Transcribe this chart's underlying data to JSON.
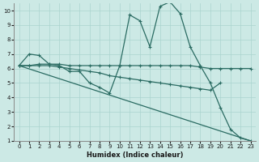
{
  "xlabel": "Humidex (Indice chaleur)",
  "xlim": [
    -0.5,
    23.5
  ],
  "ylim": [
    1,
    10.5
  ],
  "xticks": [
    0,
    1,
    2,
    3,
    4,
    5,
    6,
    7,
    8,
    9,
    10,
    11,
    12,
    13,
    14,
    15,
    16,
    17,
    18,
    19,
    20,
    21,
    22,
    23
  ],
  "yticks": [
    1,
    2,
    3,
    4,
    5,
    6,
    7,
    8,
    9,
    10
  ],
  "bg_color": "#cce9e5",
  "grid_color": "#aad4cf",
  "line_color": "#2a6b62",
  "lines": [
    {
      "x": [
        0,
        1,
        2,
        3,
        4,
        5,
        6,
        7,
        8,
        9,
        10,
        11,
        12,
        13,
        14,
        15,
        16,
        17,
        18,
        19,
        20,
        21,
        22,
        23
      ],
      "y": [
        6.2,
        7.0,
        6.9,
        6.3,
        6.2,
        5.8,
        5.8,
        5.0,
        4.7,
        4.3,
        6.2,
        9.7,
        9.3,
        7.5,
        10.3,
        10.6,
        9.8,
        7.5,
        6.2,
        5.0,
        3.3,
        1.8,
        1.2,
        1.0
      ]
    },
    {
      "x": [
        0,
        1,
        2,
        3,
        4,
        5,
        6,
        7,
        8,
        9,
        10,
        11,
        12,
        13,
        14,
        15,
        16,
        17,
        18,
        19,
        20,
        21,
        22,
        23
      ],
      "y": [
        6.2,
        6.2,
        6.3,
        6.3,
        6.3,
        6.2,
        6.2,
        6.2,
        6.2,
        6.2,
        6.2,
        6.2,
        6.2,
        6.2,
        6.2,
        6.2,
        6.2,
        6.2,
        6.1,
        6.0,
        6.0,
        6.0,
        6.0,
        6.0
      ]
    },
    {
      "x": [
        0,
        1,
        2,
        3,
        4,
        5,
        6,
        7,
        8,
        9,
        10,
        11,
        12,
        13,
        14,
        15,
        16,
        17,
        18,
        19,
        20
      ],
      "y": [
        6.2,
        6.2,
        6.2,
        6.2,
        6.1,
        6.0,
        5.9,
        5.8,
        5.7,
        5.5,
        5.4,
        5.3,
        5.2,
        5.1,
        5.0,
        4.9,
        4.8,
        4.7,
        4.6,
        4.5,
        5.0
      ]
    },
    {
      "x": [
        0,
        23
      ],
      "y": [
        6.2,
        1.0
      ]
    }
  ]
}
